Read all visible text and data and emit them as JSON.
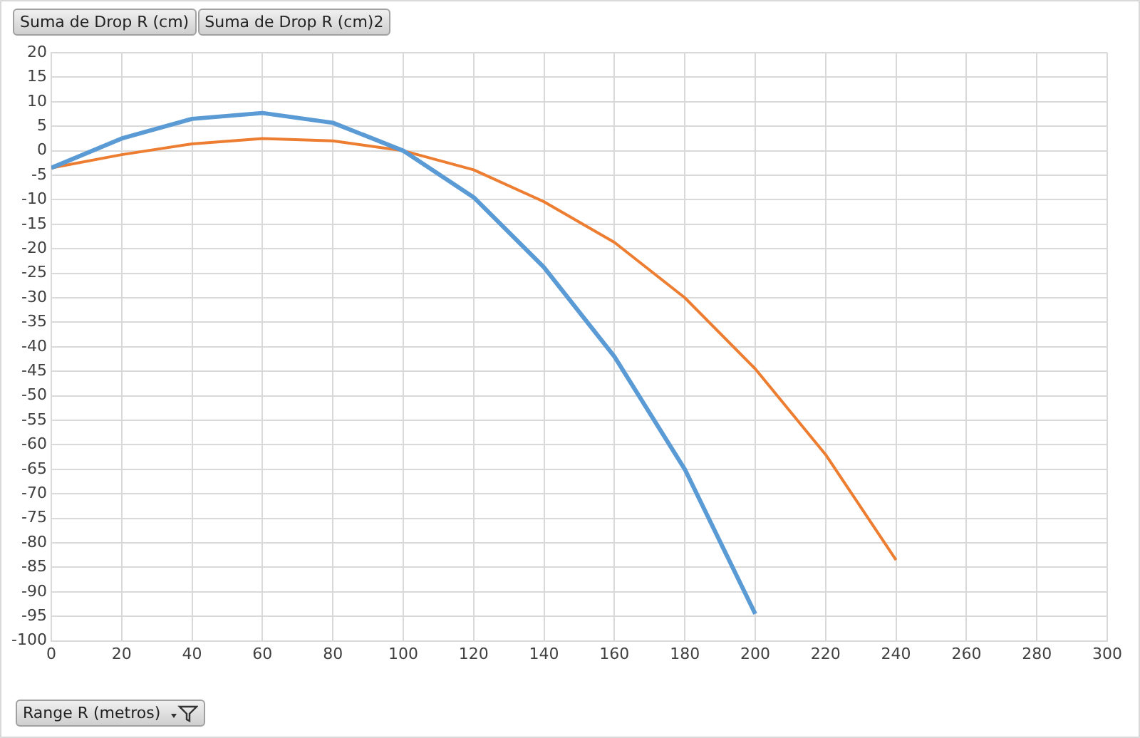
{
  "chart_data": {
    "type": "line",
    "xlabel": "Range R (metros)",
    "annotations": [
      "Suma de Drop R (cm)",
      "Suma de Drop R (cm)2"
    ],
    "series": [
      {
        "color": "#5b9bd5",
        "x": [
          0,
          20,
          40,
          60,
          80,
          100,
          120,
          140,
          160,
          180,
          200
        ],
        "values": [
          -3.5,
          2.5,
          6.5,
          7.7,
          5.7,
          0,
          -9.5,
          -23.8,
          -42,
          -65,
          -94.5
        ]
      },
      {
        "color": "#ed7d31",
        "x": [
          0,
          20,
          40,
          60,
          80,
          100,
          120,
          140,
          160,
          180,
          200,
          220,
          240
        ],
        "values": [
          -3.5,
          -0.8,
          1.4,
          2.5,
          2,
          0,
          -3.9,
          -10.4,
          -18.7,
          -30,
          -44.5,
          -62,
          -83.5
        ]
      }
    ],
    "xlim": [
      0,
      300
    ],
    "xticks": [
      0,
      20,
      40,
      60,
      80,
      100,
      120,
      140,
      160,
      180,
      200,
      220,
      240,
      260,
      280,
      300
    ],
    "ylim": [
      -100,
      20
    ],
    "yticks": [
      20,
      15,
      10,
      5,
      0,
      -5,
      -10,
      -15,
      -20,
      -25,
      -30,
      -35,
      -40,
      -45,
      -50,
      -55,
      -60,
      -65,
      -70,
      -75,
      -80,
      -85,
      -90,
      -95,
      -100
    ],
    "grid": true,
    "legend": false,
    "marker": "none",
    "line_style": "solid"
  }
}
